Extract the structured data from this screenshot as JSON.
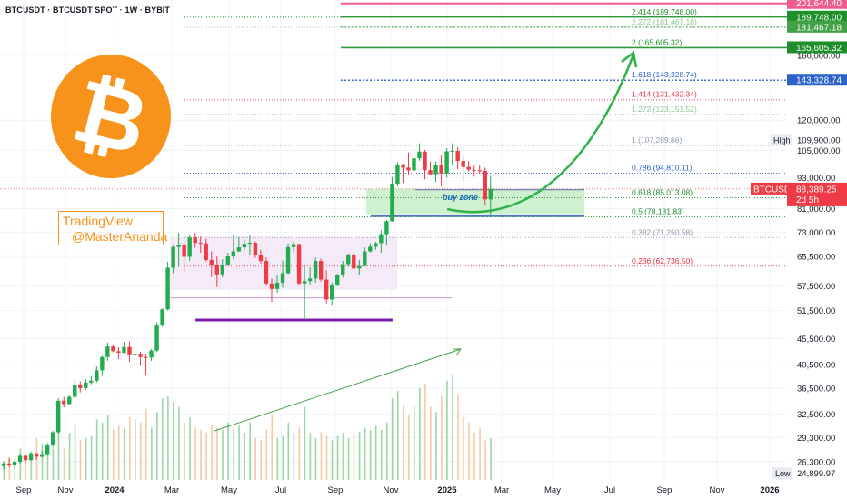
{
  "header": {
    "title": "BTCUSDT · BTCUSDT SPOT · 1W · BYBIT"
  },
  "watermark": {
    "line1": "TradingView",
    "line2": "@MasterAnanda"
  },
  "colors": {
    "up": "#22ab4f",
    "down": "#ef3b45",
    "fib_green": "#1e8f2a",
    "fib_blue": "#2a62c9",
    "fib_red": "#e8334a",
    "orange": "#f7931a",
    "purple": "#7b1fa2"
  },
  "chart_data": {
    "type": "candlestick",
    "title": "BTCUSDT · BTCUSDT SPOT · 1W · BYBIT",
    "y_scale": "log",
    "ylim": [
      24000,
      210000
    ],
    "y_ticks": [
      "160,000.00",
      "120,000.00",
      "105,000.00",
      "93,000.00",
      "81,000.00",
      "73,000.00",
      "65,500.00",
      "57,500.00",
      "51,500.00",
      "45,500.00",
      "40,500.00",
      "36,500.00",
      "32,500.00",
      "29,300.00",
      "26,300.00"
    ],
    "x_ticks": [
      "Sep",
      "Nov",
      "2024",
      "Mar",
      "May",
      "Jul",
      "Sep",
      "Nov",
      "2025",
      "Mar",
      "May",
      "Jul",
      "Sep",
      "Nov",
      "2026"
    ],
    "candles": [
      [
        25800,
        26100,
        25400,
        26300
      ],
      [
        26100,
        25900,
        25700,
        26700
      ],
      [
        25900,
        26300,
        25500,
        26500
      ],
      [
        26300,
        27000,
        26100,
        27300
      ],
      [
        27000,
        26500,
        26300,
        27100
      ],
      [
        26500,
        27300,
        26400,
        27500
      ],
      [
        27300,
        26900,
        26500,
        27400
      ],
      [
        26900,
        27200,
        26800,
        27600
      ],
      [
        27200,
        28300,
        27000,
        28600
      ],
      [
        28300,
        30000,
        28000,
        30200
      ],
      [
        30000,
        34500,
        29800,
        34900
      ],
      [
        34500,
        34000,
        33500,
        35100
      ],
      [
        34000,
        35100,
        33800,
        35400
      ],
      [
        35100,
        37000,
        34800,
        37800
      ],
      [
        37000,
        36500,
        35800,
        37600
      ],
      [
        36500,
        37400,
        36200,
        38000
      ],
      [
        37400,
        37700,
        37100,
        38500
      ],
      [
        37700,
        39500,
        37400,
        40200
      ],
      [
        39500,
        41900,
        38500,
        42100
      ],
      [
        41900,
        43900,
        41200,
        44700
      ],
      [
        43900,
        43000,
        42800,
        44300
      ],
      [
        43000,
        42700,
        41500,
        43800
      ],
      [
        42700,
        43800,
        42600,
        44800
      ],
      [
        43800,
        42400,
        41000,
        44900
      ],
      [
        42400,
        42500,
        40500,
        43300
      ],
      [
        42500,
        41900,
        40300,
        42900
      ],
      [
        41900,
        41800,
        38600,
        42500
      ],
      [
        41800,
        43100,
        41200,
        43400
      ],
      [
        43100,
        48200,
        42800,
        48900
      ],
      [
        48200,
        51800,
        47900,
        52000
      ],
      [
        51800,
        62300,
        51500,
        64000
      ],
      [
        62300,
        68300,
        60800,
        69000
      ],
      [
        68300,
        68900,
        62500,
        72800
      ],
      [
        68900,
        65400,
        60800,
        70200
      ],
      [
        65400,
        71300,
        64200,
        71900
      ],
      [
        71300,
        69600,
        68100,
        72700
      ],
      [
        69600,
        69400,
        66600,
        71500
      ],
      [
        69400,
        64500,
        64000,
        70900
      ],
      [
        64500,
        63200,
        59800,
        67000
      ],
      [
        63200,
        60500,
        57200,
        65500
      ],
      [
        60500,
        63100,
        59700,
        64700
      ],
      [
        63100,
        65500,
        62800,
        66600
      ],
      [
        65500,
        67000,
        64600,
        71900
      ],
      [
        67000,
        68200,
        66800,
        71400
      ],
      [
        68200,
        69300,
        67300,
        70500
      ],
      [
        69300,
        69600,
        66000,
        71900
      ],
      [
        69600,
        66000,
        65100,
        70000
      ],
      [
        66000,
        64200,
        63500,
        67500
      ],
      [
        64200,
        58100,
        57500,
        65200
      ],
      [
        58100,
        56700,
        53500,
        59400
      ],
      [
        56700,
        58300,
        55800,
        60300
      ],
      [
        58300,
        60800,
        57000,
        64300
      ],
      [
        60800,
        68300,
        60600,
        69400
      ],
      [
        68300,
        69200,
        66700,
        70000
      ],
      [
        69200,
        58100,
        57600,
        69300
      ],
      [
        58100,
        58700,
        49300,
        62700
      ],
      [
        58700,
        59400,
        57700,
        62400
      ],
      [
        59400,
        64200,
        58300,
        65200
      ],
      [
        64200,
        59100,
        58600,
        64900
      ],
      [
        59100,
        54100,
        53200,
        61600
      ],
      [
        54100,
        57600,
        52600,
        58400
      ],
      [
        57600,
        60300,
        57400,
        60700
      ],
      [
        60300,
        63300,
        59600,
        64200
      ],
      [
        63300,
        65800,
        62500,
        66400
      ],
      [
        65800,
        62100,
        61900,
        66500
      ],
      [
        62100,
        62800,
        60300,
        64500
      ],
      [
        62800,
        67000,
        62600,
        68200
      ],
      [
        67000,
        68400,
        66700,
        69500
      ],
      [
        68400,
        69500,
        67500,
        69900
      ],
      [
        69500,
        72300,
        66600,
        73600
      ],
      [
        72300,
        76600,
        69000,
        77000
      ],
      [
        76600,
        90500,
        76400,
        93200
      ],
      [
        90500,
        98300,
        89500,
        99600
      ],
      [
        98300,
        97200,
        90800,
        99000
      ],
      [
        97200,
        96000,
        94200,
        104000
      ],
      [
        96000,
        101300,
        95500,
        104000
      ],
      [
        101300,
        104400,
        100200,
        108300
      ],
      [
        104400,
        96100,
        92300,
        105200
      ],
      [
        96100,
        94400,
        94100,
        99900
      ],
      [
        94400,
        98200,
        91200,
        99900
      ],
      [
        98200,
        94700,
        89400,
        102700
      ],
      [
        94700,
        104500,
        93000,
        106000
      ],
      [
        104500,
        104700,
        98500,
        108300
      ],
      [
        104700,
        100100,
        96500,
        106400
      ],
      [
        100100,
        97500,
        91200,
        102500
      ],
      [
        97500,
        96300,
        95400,
        100100
      ],
      [
        96300,
        96100,
        93400,
        98500
      ],
      [
        96100,
        95800,
        94600,
        98400
      ],
      [
        95800,
        84400,
        82200,
        97200
      ],
      [
        84400,
        88400,
        78200,
        93700
      ]
    ],
    "volume": [
      18,
      22,
      16,
      30,
      25,
      20,
      40,
      35,
      28,
      30,
      48,
      30,
      45,
      52,
      38,
      40,
      42,
      58,
      55,
      62,
      48,
      52,
      50,
      60,
      58,
      55,
      68,
      50,
      65,
      78,
      80,
      75,
      70,
      55,
      60,
      50,
      48,
      45,
      52,
      50,
      48,
      55,
      50,
      52,
      45,
      55,
      40,
      38,
      48,
      62,
      40,
      42,
      55,
      45,
      50,
      70,
      45,
      40,
      46,
      42,
      38,
      42,
      45,
      40,
      44,
      46,
      50,
      48,
      52,
      48,
      55,
      78,
      85,
      72,
      62,
      70,
      88,
      92,
      70,
      65,
      80,
      95,
      100,
      82,
      60,
      55,
      45,
      50,
      38,
      40
    ],
    "fib_levels": [
      {
        "ratio": "0.236",
        "price": "62,736.50",
        "color": "#e8334a"
      },
      {
        "ratio": "0.382",
        "price": "71,250.58",
        "color": "#8f9ba8"
      },
      {
        "ratio": "0.5",
        "price": "78,131.83",
        "color": "#1e8f2a"
      },
      {
        "ratio": "0.618",
        "price": "85,013.08",
        "color": "#1e8f2a"
      },
      {
        "ratio": "0.786",
        "price": "94,810.11",
        "color": "#2a62c9"
      },
      {
        "ratio": "1",
        "price": "107,289.66",
        "color": "#8f9ba8"
      },
      {
        "ratio": "1.272",
        "price": "123,151.52",
        "color": "#8bc48f"
      },
      {
        "ratio": "1.414",
        "price": "131,432.34",
        "color": "#e8334a"
      },
      {
        "ratio": "1.618",
        "price": "143,328.74",
        "color": "#2a62c9"
      },
      {
        "ratio": "2",
        "price": "165,605.32",
        "color": "#1e8f2a"
      },
      {
        "ratio": "2.272",
        "price": "181,467.18",
        "color": "#8bc48f"
      },
      {
        "ratio": "2.414",
        "price": "189,748.00",
        "color": "#1e8f2a"
      }
    ],
    "price_tags": [
      {
        "label": "201,644.40",
        "bg": "#ef5b8a",
        "price": 201644
      },
      {
        "label": "189,748.00",
        "bg": "#1e8f2a",
        "price": 189748
      },
      {
        "label": "181,467.18",
        "bg": "#43a047",
        "price": 181467
      },
      {
        "label": "165,605.32",
        "bg": "#1e8f2a",
        "price": 165605
      },
      {
        "label": "143,328.74",
        "bg": "#2a62c9",
        "price": 143328
      }
    ],
    "annotations": {
      "buy_zone": "buy zone"
    },
    "high": {
      "label": "High",
      "value": "109,900.00"
    },
    "low": {
      "label": "Low",
      "value": "24,899.97"
    },
    "last": {
      "symbol": "BTCUSDT",
      "value": "88,389.25",
      "countdown": "2d 5h"
    }
  }
}
